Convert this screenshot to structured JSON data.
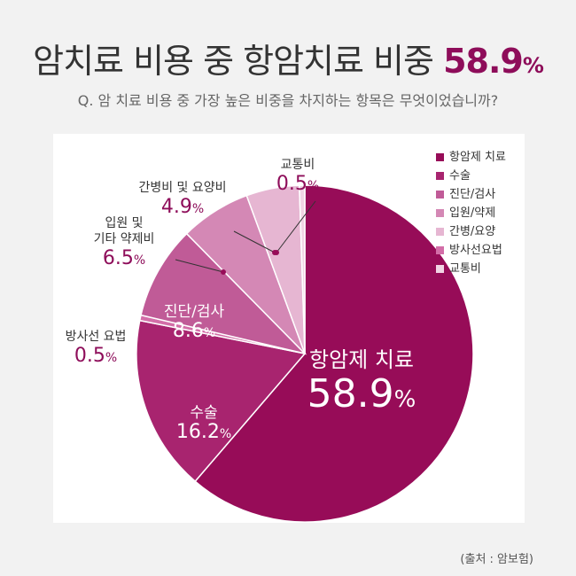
{
  "title": {
    "text": "암치료 비용 중 항암치료 비중",
    "value": "58.9",
    "unit": "%"
  },
  "subtitle": "Q. 암 치료 비용 중 가장 높은 비중을 차지하는 항목은 무엇이었습니까?",
  "source": "(출처 : 암보험)",
  "chart_data": {
    "type": "pie",
    "title": "",
    "unit": "%",
    "slices": [
      {
        "label": "항암제 치료",
        "chart_label": "항암제 치료",
        "value": 58.9,
        "color": "#970c58"
      },
      {
        "label": "수술",
        "chart_label": "수술",
        "value": 16.2,
        "color": "#a8246f"
      },
      {
        "label": "진단/검사",
        "chart_label": "진단/검사",
        "value": 8.6,
        "color": "#c05b97"
      },
      {
        "label": "입원/약제",
        "chart_label": [
          "입원 및",
          "기타 약제비"
        ],
        "value": 6.5,
        "color": "#d488b5"
      },
      {
        "label": "간병/요양",
        "chart_label": "간병비 및 요양비",
        "value": 4.9,
        "color": "#e6b6d2"
      },
      {
        "label": "방사선요법",
        "chart_label": "방사선 요법",
        "value": 0.5,
        "color": "#d36ea8"
      },
      {
        "label": "교통비",
        "chart_label": "교통비",
        "value": 0.5,
        "color": "#f1d4e4"
      }
    ],
    "slice_order": [
      "항암제 치료",
      "수술",
      "방사선요법",
      "진단/검사",
      "입원/약제",
      "간병/요양",
      "교통비"
    ],
    "legend_position": "top-right"
  }
}
